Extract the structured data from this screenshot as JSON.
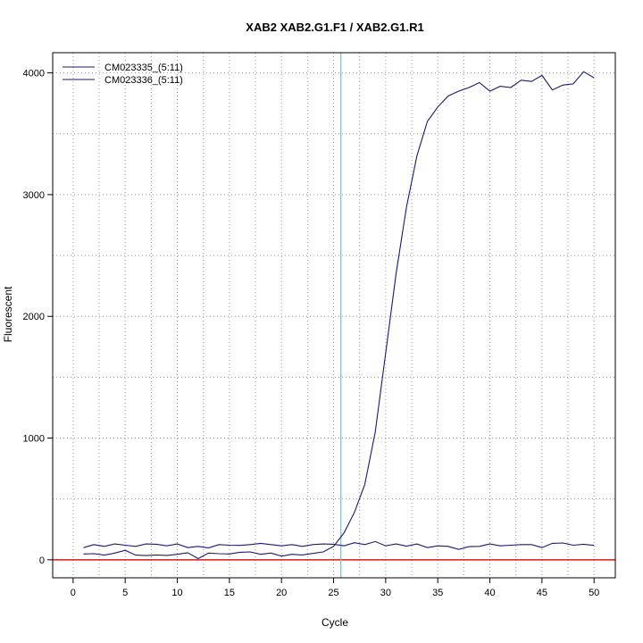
{
  "chart_data": {
    "type": "line",
    "title": "XAB2  XAB2.G1.F1 / XAB2.G1.R1",
    "xlabel": "Cycle",
    "ylabel": "Fluorescent",
    "xlim": [
      -1.96,
      52.04
    ],
    "ylim": [
      -148,
      4166
    ],
    "xticks": [
      0,
      5,
      10,
      15,
      20,
      25,
      30,
      35,
      40,
      45,
      50
    ],
    "yticks": [
      0,
      1000,
      2000,
      3000,
      4000
    ],
    "grid": "dotted",
    "legend_position": "top-left",
    "threshold_cycle": 25.7,
    "baseline": 0,
    "colors": {
      "series": "#1a1a6e",
      "threshold": "#3fd9d9",
      "baseline": "#cc2222",
      "grid": "#999999"
    },
    "series": [
      {
        "name": "CM023335_(5:11)",
        "x": [
          1,
          2,
          3,
          4,
          5,
          6,
          7,
          8,
          9,
          10,
          11,
          12,
          13,
          14,
          15,
          16,
          17,
          18,
          19,
          20,
          21,
          22,
          23,
          24,
          25,
          26,
          27,
          28,
          29,
          30,
          31,
          32,
          33,
          34,
          35,
          36,
          37,
          38,
          39,
          40,
          41,
          42,
          43,
          44,
          45,
          46,
          47,
          48,
          49,
          50
        ],
        "values": [
          48,
          50,
          38,
          55,
          78,
          38,
          35,
          40,
          36,
          45,
          58,
          10,
          55,
          50,
          48,
          62,
          65,
          45,
          55,
          30,
          45,
          40,
          52,
          65,
          110,
          220,
          390,
          620,
          1050,
          1700,
          2350,
          2900,
          3320,
          3600,
          3720,
          3810,
          3850,
          3880,
          3920,
          3850,
          3890,
          3880,
          3940,
          3930,
          3980,
          3860,
          3900,
          3910,
          4010,
          3960
        ]
      },
      {
        "name": "CM023336_(5:11)",
        "x": [
          1,
          2,
          3,
          4,
          5,
          6,
          7,
          8,
          9,
          10,
          11,
          12,
          13,
          14,
          15,
          16,
          17,
          18,
          19,
          20,
          21,
          22,
          23,
          24,
          25,
          26,
          27,
          28,
          29,
          30,
          31,
          32,
          33,
          34,
          35,
          36,
          37,
          38,
          39,
          40,
          41,
          42,
          43,
          44,
          45,
          46,
          47,
          48,
          49,
          50
        ],
        "values": [
          100,
          125,
          110,
          130,
          120,
          110,
          130,
          128,
          115,
          130,
          100,
          110,
          98,
          125,
          120,
          118,
          125,
          135,
          125,
          115,
          125,
          110,
          125,
          130,
          128,
          115,
          140,
          125,
          150,
          115,
          130,
          112,
          130,
          100,
          115,
          110,
          85,
          108,
          110,
          130,
          115,
          120,
          125,
          125,
          100,
          135,
          138,
          120,
          128,
          118
        ]
      }
    ]
  }
}
